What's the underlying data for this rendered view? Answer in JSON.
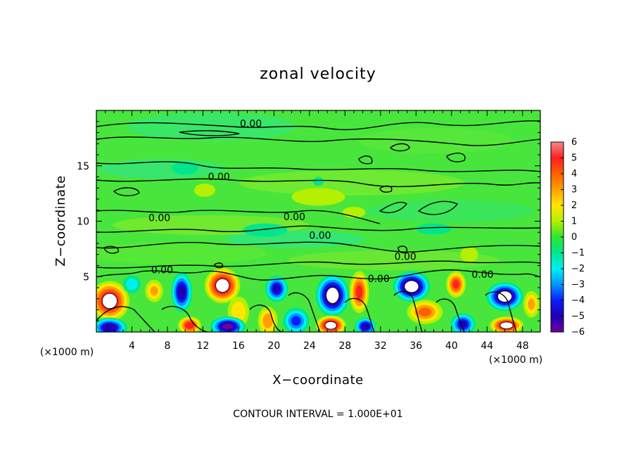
{
  "chart_data": {
    "type": "heatmap",
    "title": "zonal velocity",
    "xlabel": "X−coordinate",
    "ylabel": "Z−coordinate",
    "x_unit_left": "(×1000 m)",
    "x_unit_right": "(×1000 m)",
    "footer": "CONTOUR INTERVAL = 1.000E+01",
    "xlim": [
      0,
      50
    ],
    "ylim": [
      0,
      20
    ],
    "x_ticks": [
      4,
      8,
      12,
      16,
      20,
      24,
      28,
      32,
      36,
      40,
      44,
      48
    ],
    "x_tick_labels": [
      "4",
      "8",
      "12",
      "16",
      "20",
      "24",
      "28",
      "32",
      "36",
      "40",
      "44",
      "48"
    ],
    "y_ticks": [
      5,
      10,
      15
    ],
    "y_tick_labels": [
      "5",
      "10",
      "15"
    ],
    "colorbar": {
      "range": [
        -6,
        6
      ],
      "ticks": [
        6,
        5,
        4,
        3,
        2,
        1,
        0,
        -1,
        -2,
        -3,
        -4,
        -5,
        -6
      ],
      "tick_labels": [
        "6",
        "5",
        "4",
        "3",
        "2",
        "1",
        "0",
        "−1",
        "−2",
        "−3",
        "−4",
        "−5",
        "−6"
      ],
      "colors": [
        "#f48a8a",
        "#ff2020",
        "#ff6000",
        "#ffa000",
        "#ffe600",
        "#b4f000",
        "#2fe62f",
        "#00e68c",
        "#00f0f0",
        "#0096ff",
        "#0a1eff",
        "#1e00b4",
        "#7000a0"
      ]
    },
    "contour_levels": [
      0
    ],
    "contour_labels": [
      {
        "text": "0.00",
        "x": 17.4,
        "y": 18.5
      },
      {
        "text": "0.00",
        "x": 13.8,
        "y": 13.7
      },
      {
        "text": "0.00",
        "x": 7.1,
        "y": 10.0
      },
      {
        "text": "0.00",
        "x": 22.3,
        "y": 10.1
      },
      {
        "text": "0.00",
        "x": 25.2,
        "y": 8.4
      },
      {
        "text": "0.00",
        "x": 34.8,
        "y": 6.5
      },
      {
        "text": "0.00",
        "x": 7.4,
        "y": 5.3
      },
      {
        "text": "0.00",
        "x": 31.8,
        "y": 4.5
      },
      {
        "text": "0.00",
        "x": 43.5,
        "y": 4.9
      }
    ],
    "anomalies": [
      {
        "x": 1.5,
        "y": 2.8,
        "value": 6.5,
        "rx": 2.2,
        "ry": 1.8
      },
      {
        "x": 1.5,
        "y": 0.4,
        "value": -5.5,
        "rx": 2.0,
        "ry": 0.9
      },
      {
        "x": 4.0,
        "y": 4.3,
        "value": -2.5,
        "rx": 1.0,
        "ry": 0.8
      },
      {
        "x": 6.5,
        "y": 3.7,
        "value": 3.0,
        "rx": 1.0,
        "ry": 1.0
      },
      {
        "x": 9.6,
        "y": 3.6,
        "value": -5.5,
        "rx": 1.2,
        "ry": 1.8
      },
      {
        "x": 10.5,
        "y": 0.6,
        "value": 5.5,
        "rx": 1.3,
        "ry": 0.8
      },
      {
        "x": 14.2,
        "y": 4.2,
        "value": 6.8,
        "rx": 2.0,
        "ry": 1.6
      },
      {
        "x": 16.0,
        "y": 1.8,
        "value": 2.5,
        "rx": 1.2,
        "ry": 1.4
      },
      {
        "x": 14.8,
        "y": 0.5,
        "value": -6.0,
        "rx": 2.0,
        "ry": 0.9
      },
      {
        "x": 20.3,
        "y": 3.9,
        "value": -5.0,
        "rx": 1.3,
        "ry": 1.2
      },
      {
        "x": 19.3,
        "y": 1.0,
        "value": 3.5,
        "rx": 1.1,
        "ry": 1.3
      },
      {
        "x": 22.5,
        "y": 1.0,
        "value": -4.0,
        "rx": 1.5,
        "ry": 1.2
      },
      {
        "x": 26.6,
        "y": 3.3,
        "value": -6.8,
        "rx": 1.9,
        "ry": 1.9
      },
      {
        "x": 26.4,
        "y": 0.6,
        "value": 6.8,
        "rx": 1.7,
        "ry": 0.9
      },
      {
        "x": 29.6,
        "y": 3.6,
        "value": 5.0,
        "rx": 1.1,
        "ry": 1.9
      },
      {
        "x": 30.3,
        "y": 0.5,
        "value": -5.5,
        "rx": 1.2,
        "ry": 0.8
      },
      {
        "x": 35.5,
        "y": 4.1,
        "value": -6.8,
        "rx": 2.1,
        "ry": 1.4
      },
      {
        "x": 37.0,
        "y": 1.8,
        "value": 4.0,
        "rx": 2.0,
        "ry": 1.1
      },
      {
        "x": 40.5,
        "y": 4.3,
        "value": 5.0,
        "rx": 1.1,
        "ry": 1.2
      },
      {
        "x": 41.3,
        "y": 0.7,
        "value": -5.0,
        "rx": 1.4,
        "ry": 1.0
      },
      {
        "x": 46.0,
        "y": 3.2,
        "value": -6.5,
        "rx": 2.1,
        "ry": 1.3
      },
      {
        "x": 46.2,
        "y": 0.6,
        "value": 6.5,
        "rx": 1.9,
        "ry": 0.8
      },
      {
        "x": 49.0,
        "y": 2.5,
        "value": 3.0,
        "rx": 0.9,
        "ry": 1.2
      },
      {
        "x": 25.0,
        "y": 12.2,
        "value": 1.5,
        "rx": 3.0,
        "ry": 0.8
      },
      {
        "x": 10.0,
        "y": 14.8,
        "value": -1.8,
        "rx": 1.5,
        "ry": 0.6
      },
      {
        "x": 12.2,
        "y": 12.8,
        "value": 1.5,
        "rx": 1.2,
        "ry": 0.6
      },
      {
        "x": 29.0,
        "y": 10.8,
        "value": 1.2,
        "rx": 1.3,
        "ry": 0.5
      },
      {
        "x": 19.0,
        "y": 9.2,
        "value": -1.5,
        "rx": 2.5,
        "ry": 0.6
      },
      {
        "x": 38.0,
        "y": 9.3,
        "value": -1.0,
        "rx": 2.0,
        "ry": 0.5
      },
      {
        "x": 25.0,
        "y": 13.6,
        "value": -1.5,
        "rx": 0.6,
        "ry": 0.4
      },
      {
        "x": 42.0,
        "y": 7.0,
        "value": 1.5,
        "rx": 1.0,
        "ry": 0.7
      }
    ]
  }
}
